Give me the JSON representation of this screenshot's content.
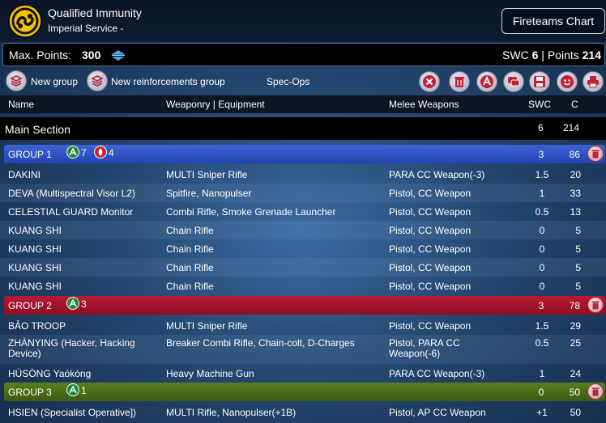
{
  "header": {
    "army_name": "Qualified Immunity",
    "sectorial": "Imperial Service -",
    "fireteams_button": "Fireteams Chart",
    "logo_icon": "yu-jing-logo-icon"
  },
  "points_bar": {
    "max_label": "Max. Points:",
    "max_value": "300",
    "swc_label": "SWC",
    "swc_value": "6",
    "separator": "|",
    "points_label": "Points",
    "points_value": "214"
  },
  "toolbar": {
    "new_group": "New group",
    "new_reinforcements_group": "New reinforcements group",
    "spec_ops": "Spec-Ops",
    "icons": [
      "delete-list-icon",
      "trash-icon",
      "army-info-icon",
      "chat-icon",
      "save-icon",
      "face-icon",
      "print-icon"
    ]
  },
  "columns": {
    "name": "Name",
    "weaponry": "Weaponry | Equipment",
    "melee": "Melee Weapons",
    "swc": "SWC",
    "cost": "C"
  },
  "main_section": {
    "title": "Main Section",
    "swc": "6",
    "cost": "214"
  },
  "groups": [
    {
      "label": "GROUP 1",
      "regular_orders": "7",
      "irregular_orders": "4",
      "swc": "3",
      "cost": "86",
      "color": "#2f55c8",
      "rows": [
        {
          "name": "DAKINI",
          "weapons": "MULTI Sniper Rifle",
          "melee": "PARA CC Weapon(-3)",
          "swc": "1.5",
          "cost": "20"
        },
        {
          "name": "DEVA (Multispectral Visor L2)",
          "weapons": "Spitfire, Nanopulser",
          "melee": "Pistol, CC Weapon",
          "swc": "1",
          "cost": "33"
        },
        {
          "name": "CELESTIAL GUARD Monitor",
          "weapons": "Combi Rifle, Smoke Grenade Launcher",
          "melee": "Pistol, CC Weapon",
          "swc": "0.5",
          "cost": "13"
        },
        {
          "name": "KUANG SHI",
          "weapons": "Chain Rifle",
          "melee": "Pistol, CC Weapon",
          "swc": "0",
          "cost": "5"
        },
        {
          "name": "KUANG SHI",
          "weapons": "Chain Rifle",
          "melee": "Pistol, CC Weapon",
          "swc": "0",
          "cost": "5"
        },
        {
          "name": "KUANG SHI",
          "weapons": "Chain Rifle",
          "melee": "Pistol, CC Weapon",
          "swc": "0",
          "cost": "5"
        },
        {
          "name": "KUANG SHI",
          "weapons": "Chain Rifle",
          "melee": "Pistol, CC Weapon",
          "swc": "0",
          "cost": "5"
        }
      ]
    },
    {
      "label": "GROUP 2",
      "regular_orders": "3",
      "swc": "3",
      "cost": "78",
      "color": "#a3142a",
      "rows": [
        {
          "name": "BẢO TROOP",
          "weapons": "MULTI Sniper Rifle",
          "melee": "Pistol, CC Weapon",
          "swc": "1.5",
          "cost": "29"
        },
        {
          "name_line1": "ZHÀNYING (Hacker, Hacking",
          "name_line2": "Device)",
          "weapons": "Breaker Combi Rifle, Chain-colt, D-Charges",
          "melee_line1": "Pistol, PARA CC",
          "melee_line2": "Weapon(-6)",
          "swc": "0.5",
          "cost": "25"
        },
        {
          "name": "HÙSÒNG Yaókòng",
          "weapons": "Heavy Machine Gun",
          "melee": "PARA CC Weapon(-3)",
          "swc": "1",
          "cost": "24"
        }
      ]
    },
    {
      "label": "GROUP 3",
      "regular_orders": "1",
      "swc": "0",
      "cost": "50",
      "color": "#4d6e1a",
      "rows": [
        {
          "name": "HSIEN (Specialist Operative])",
          "weapons": "MULTI Rifle, Nanopulser(+1B)",
          "melee": "Pistol, AP CC Weapon",
          "swc": "+1",
          "cost": "50"
        }
      ]
    }
  ]
}
